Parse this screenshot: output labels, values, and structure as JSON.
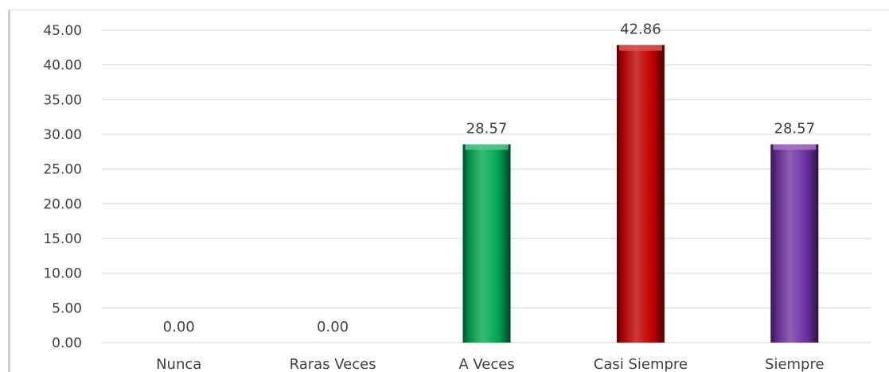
{
  "chart_data": {
    "type": "bar",
    "categories": [
      "Nunca",
      "Raras Veces",
      "A Veces",
      "Casi Siempre",
      "Siempre"
    ],
    "values": [
      0.0,
      0.0,
      28.57,
      42.86,
      28.57
    ],
    "value_labels": [
      "0.00",
      "0.00",
      "28.57",
      "42.86",
      "28.57"
    ],
    "title": "",
    "xlabel": "",
    "ylabel": "",
    "ylim": [
      0,
      45
    ],
    "y_ticks": [
      "0.00",
      "5.00",
      "10.00",
      "15.00",
      "20.00",
      "25.00",
      "30.00",
      "35.00",
      "40.00",
      "45.00"
    ],
    "grid": true,
    "legend": "none",
    "colors": {
      "bars": [
        "#4472c4",
        "#ed7d31",
        "#00a651",
        "#c00000",
        "#7030a0"
      ],
      "gridline": "#d9d9d9",
      "text": "#404040"
    }
  }
}
